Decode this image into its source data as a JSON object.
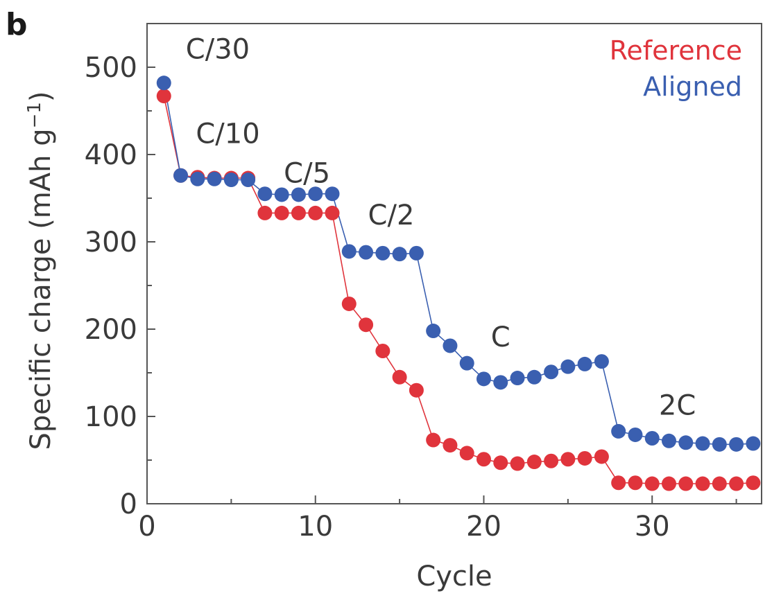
{
  "panel_label": "b",
  "chart_data": {
    "type": "scatter",
    "xlabel": "Cycle",
    "ylabel": "Specific charge (mAh g",
    "ylabel_sup": "−1",
    "ylabel_close": ")",
    "xlim": [
      0,
      36.5
    ],
    "ylim": [
      0,
      550
    ],
    "xticks": [
      0,
      10,
      20,
      30
    ],
    "yticks": [
      0,
      100,
      200,
      300,
      400,
      500
    ],
    "grid": false,
    "legend": "top-right",
    "connected": true,
    "series": [
      {
        "name": "Reference",
        "color": "#e0343c",
        "x": [
          1,
          2,
          3,
          4,
          5,
          6,
          7,
          8,
          9,
          10,
          11,
          12,
          13,
          14,
          15,
          16,
          17,
          18,
          19,
          20,
          21,
          22,
          23,
          24,
          25,
          26,
          27,
          28,
          29,
          30,
          31,
          32,
          33,
          34,
          35,
          36
        ],
        "values": [
          467,
          376,
          374,
          373,
          373,
          373,
          333,
          333,
          333,
          333,
          333,
          229,
          205,
          175,
          145,
          130,
          73,
          67,
          58,
          51,
          47,
          46,
          48,
          49,
          51,
          52,
          54,
          24,
          24,
          23,
          23,
          23,
          23,
          23,
          23,
          24
        ]
      },
      {
        "name": "Aligned",
        "color": "#3a5fb0",
        "x": [
          1,
          2,
          3,
          4,
          5,
          6,
          7,
          8,
          9,
          10,
          11,
          12,
          13,
          14,
          15,
          16,
          17,
          18,
          19,
          20,
          21,
          22,
          23,
          24,
          25,
          26,
          27,
          28,
          29,
          30,
          31,
          32,
          33,
          34,
          35,
          36
        ],
        "values": [
          482,
          376,
          372,
          372,
          371,
          371,
          355,
          354,
          354,
          355,
          355,
          289,
          288,
          287,
          286,
          287,
          198,
          181,
          161,
          143,
          139,
          144,
          145,
          151,
          157,
          160,
          163,
          83,
          79,
          75,
          72,
          70,
          69,
          68,
          68,
          69
        ]
      }
    ],
    "annotations": [
      {
        "text": "C/30",
        "x": 4.2,
        "y": 510
      },
      {
        "text": "C/10",
        "x": 4.8,
        "y": 413
      },
      {
        "text": "C/5",
        "x": 9.5,
        "y": 368
      },
      {
        "text": "C/2",
        "x": 14.5,
        "y": 320
      },
      {
        "text": "C",
        "x": 21,
        "y": 180
      },
      {
        "text": "2C",
        "x": 31.5,
        "y": 102
      }
    ]
  }
}
